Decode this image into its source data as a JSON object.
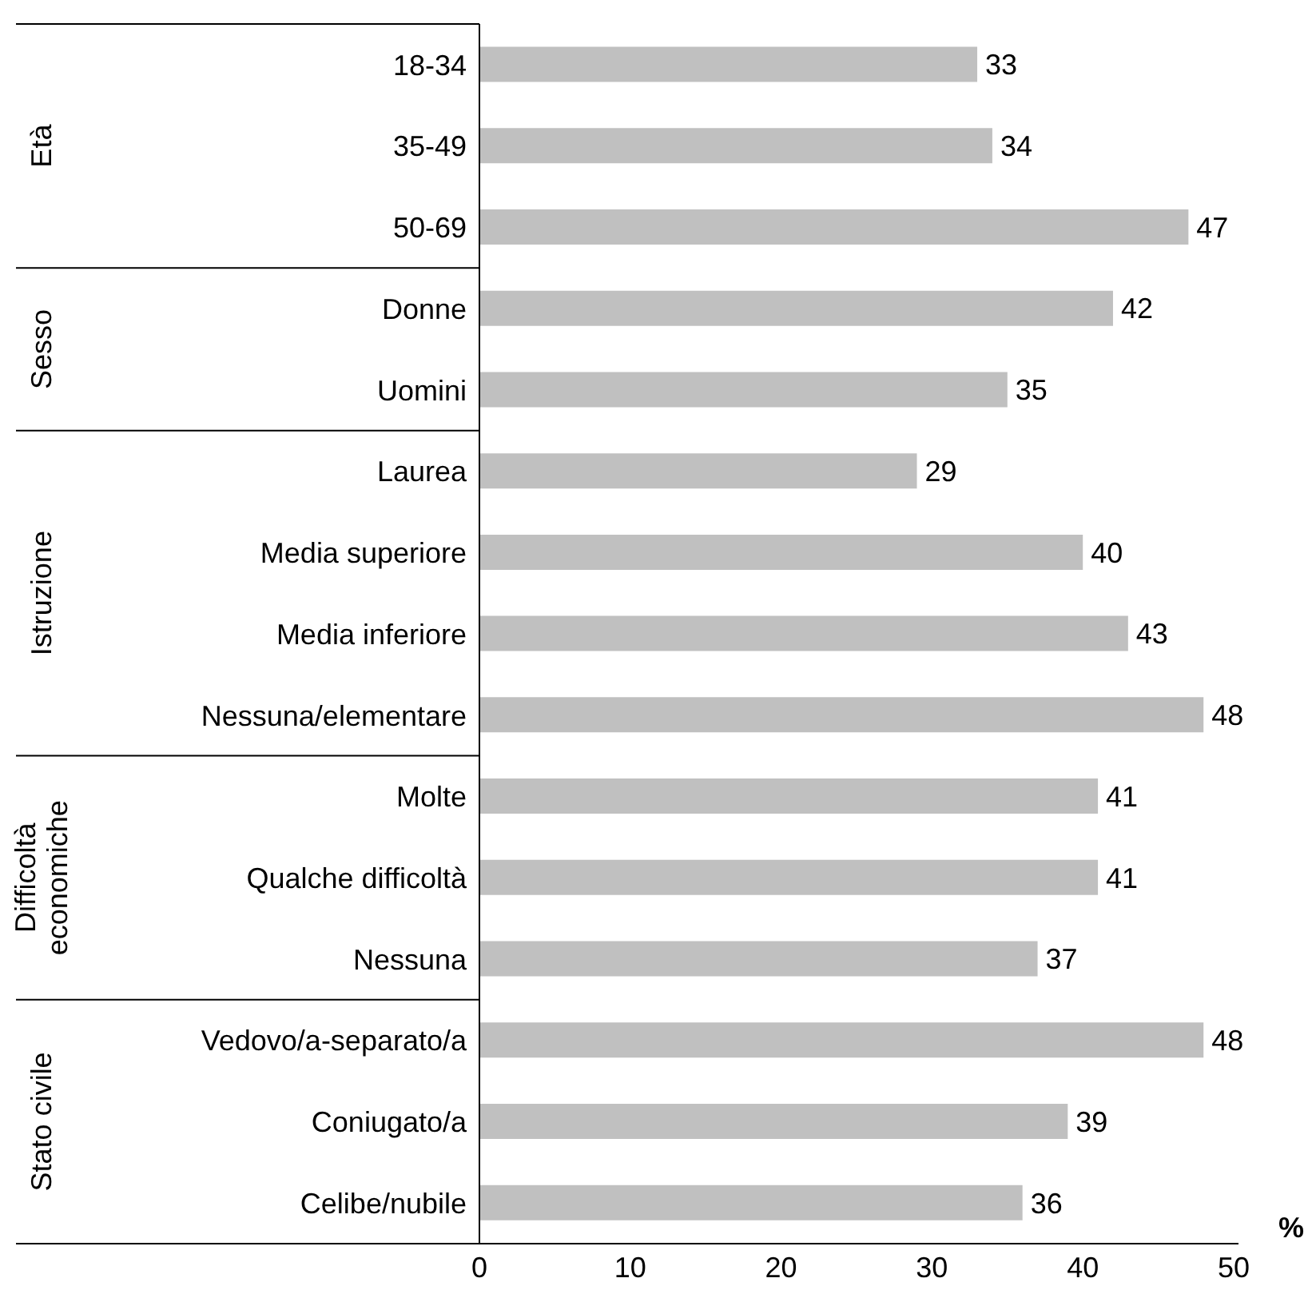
{
  "chart_data": {
    "type": "bar",
    "orientation": "horizontal",
    "categories": [
      "18-34",
      "35-49",
      "50-69",
      "Donne",
      "Uomini",
      "Laurea",
      "Media superiore",
      "Media inferiore",
      "Nessuna/elementare",
      "Molte",
      "Qualche difficoltà",
      "Nessuna",
      "Vedovo/a-separato/a",
      "Coniugato/a",
      "Celibe/nubile"
    ],
    "values": [
      33,
      34,
      47,
      42,
      35,
      29,
      40,
      43,
      48,
      41,
      41,
      37,
      48,
      39,
      36
    ],
    "color": "#c0c0c0",
    "xlim": [
      0,
      50
    ],
    "xticks": [
      0,
      10,
      20,
      30,
      40,
      50
    ],
    "xlabel": "%",
    "data_labels": true,
    "grid": false,
    "legend": false,
    "annotations": [
      "Età",
      "Sesso",
      "Istruzione",
      "Difficoltà economiche",
      "Stato civile"
    ]
  }
}
